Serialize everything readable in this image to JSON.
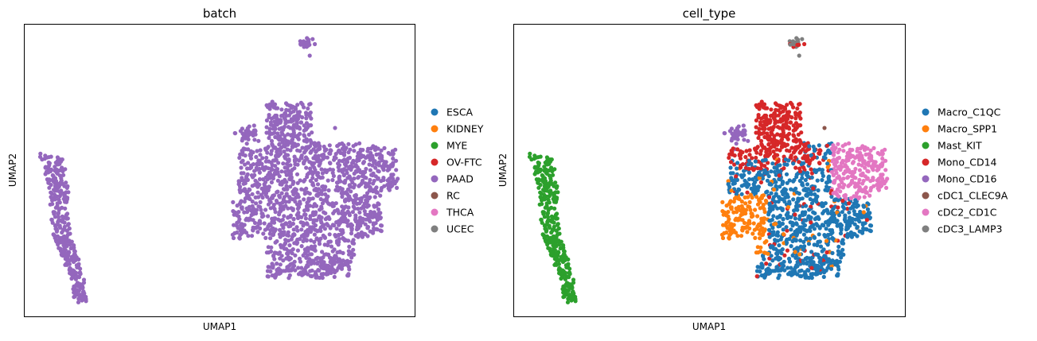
{
  "chart_data": [
    {
      "type": "scatter",
      "title": "batch",
      "xlabel": "UMAP1",
      "ylabel": "UMAP2",
      "legend_placement": "right-outside",
      "grid": false,
      "ticks": false,
      "legend": [
        {
          "name": "ESCA",
          "color": "#1f77b4"
        },
        {
          "name": "KIDNEY",
          "color": "#ff7f0e"
        },
        {
          "name": "MYE",
          "color": "#2ca02c"
        },
        {
          "name": "OV-FTC",
          "color": "#d62728"
        },
        {
          "name": "PAAD",
          "color": "#9467bd"
        },
        {
          "name": "RC",
          "color": "#8c564b"
        },
        {
          "name": "THCA",
          "color": "#e377c2"
        },
        {
          "name": "UCEC",
          "color": "#7f7f7f"
        }
      ],
      "clusters": [
        {
          "name": "PAAD",
          "color": "#9467bd",
          "points": "all"
        }
      ]
    },
    {
      "type": "scatter",
      "title": "cell_type",
      "xlabel": "UMAP1",
      "ylabel": "UMAP2",
      "legend_placement": "right-outside",
      "grid": false,
      "ticks": false,
      "legend": [
        {
          "name": "Macro_C1QC",
          "color": "#1f77b4"
        },
        {
          "name": "Macro_SPP1",
          "color": "#ff7f0e"
        },
        {
          "name": "Mast_KIT",
          "color": "#2ca02c"
        },
        {
          "name": "Mono_CD14",
          "color": "#d62728"
        },
        {
          "name": "Mono_CD16",
          "color": "#9467bd"
        },
        {
          "name": "cDC1_CLEC9A",
          "color": "#8c564b"
        },
        {
          "name": "cDC2_CD1C",
          "color": "#e377c2"
        },
        {
          "name": "cDC3_LAMP3",
          "color": "#7f7f7f"
        }
      ]
    }
  ]
}
